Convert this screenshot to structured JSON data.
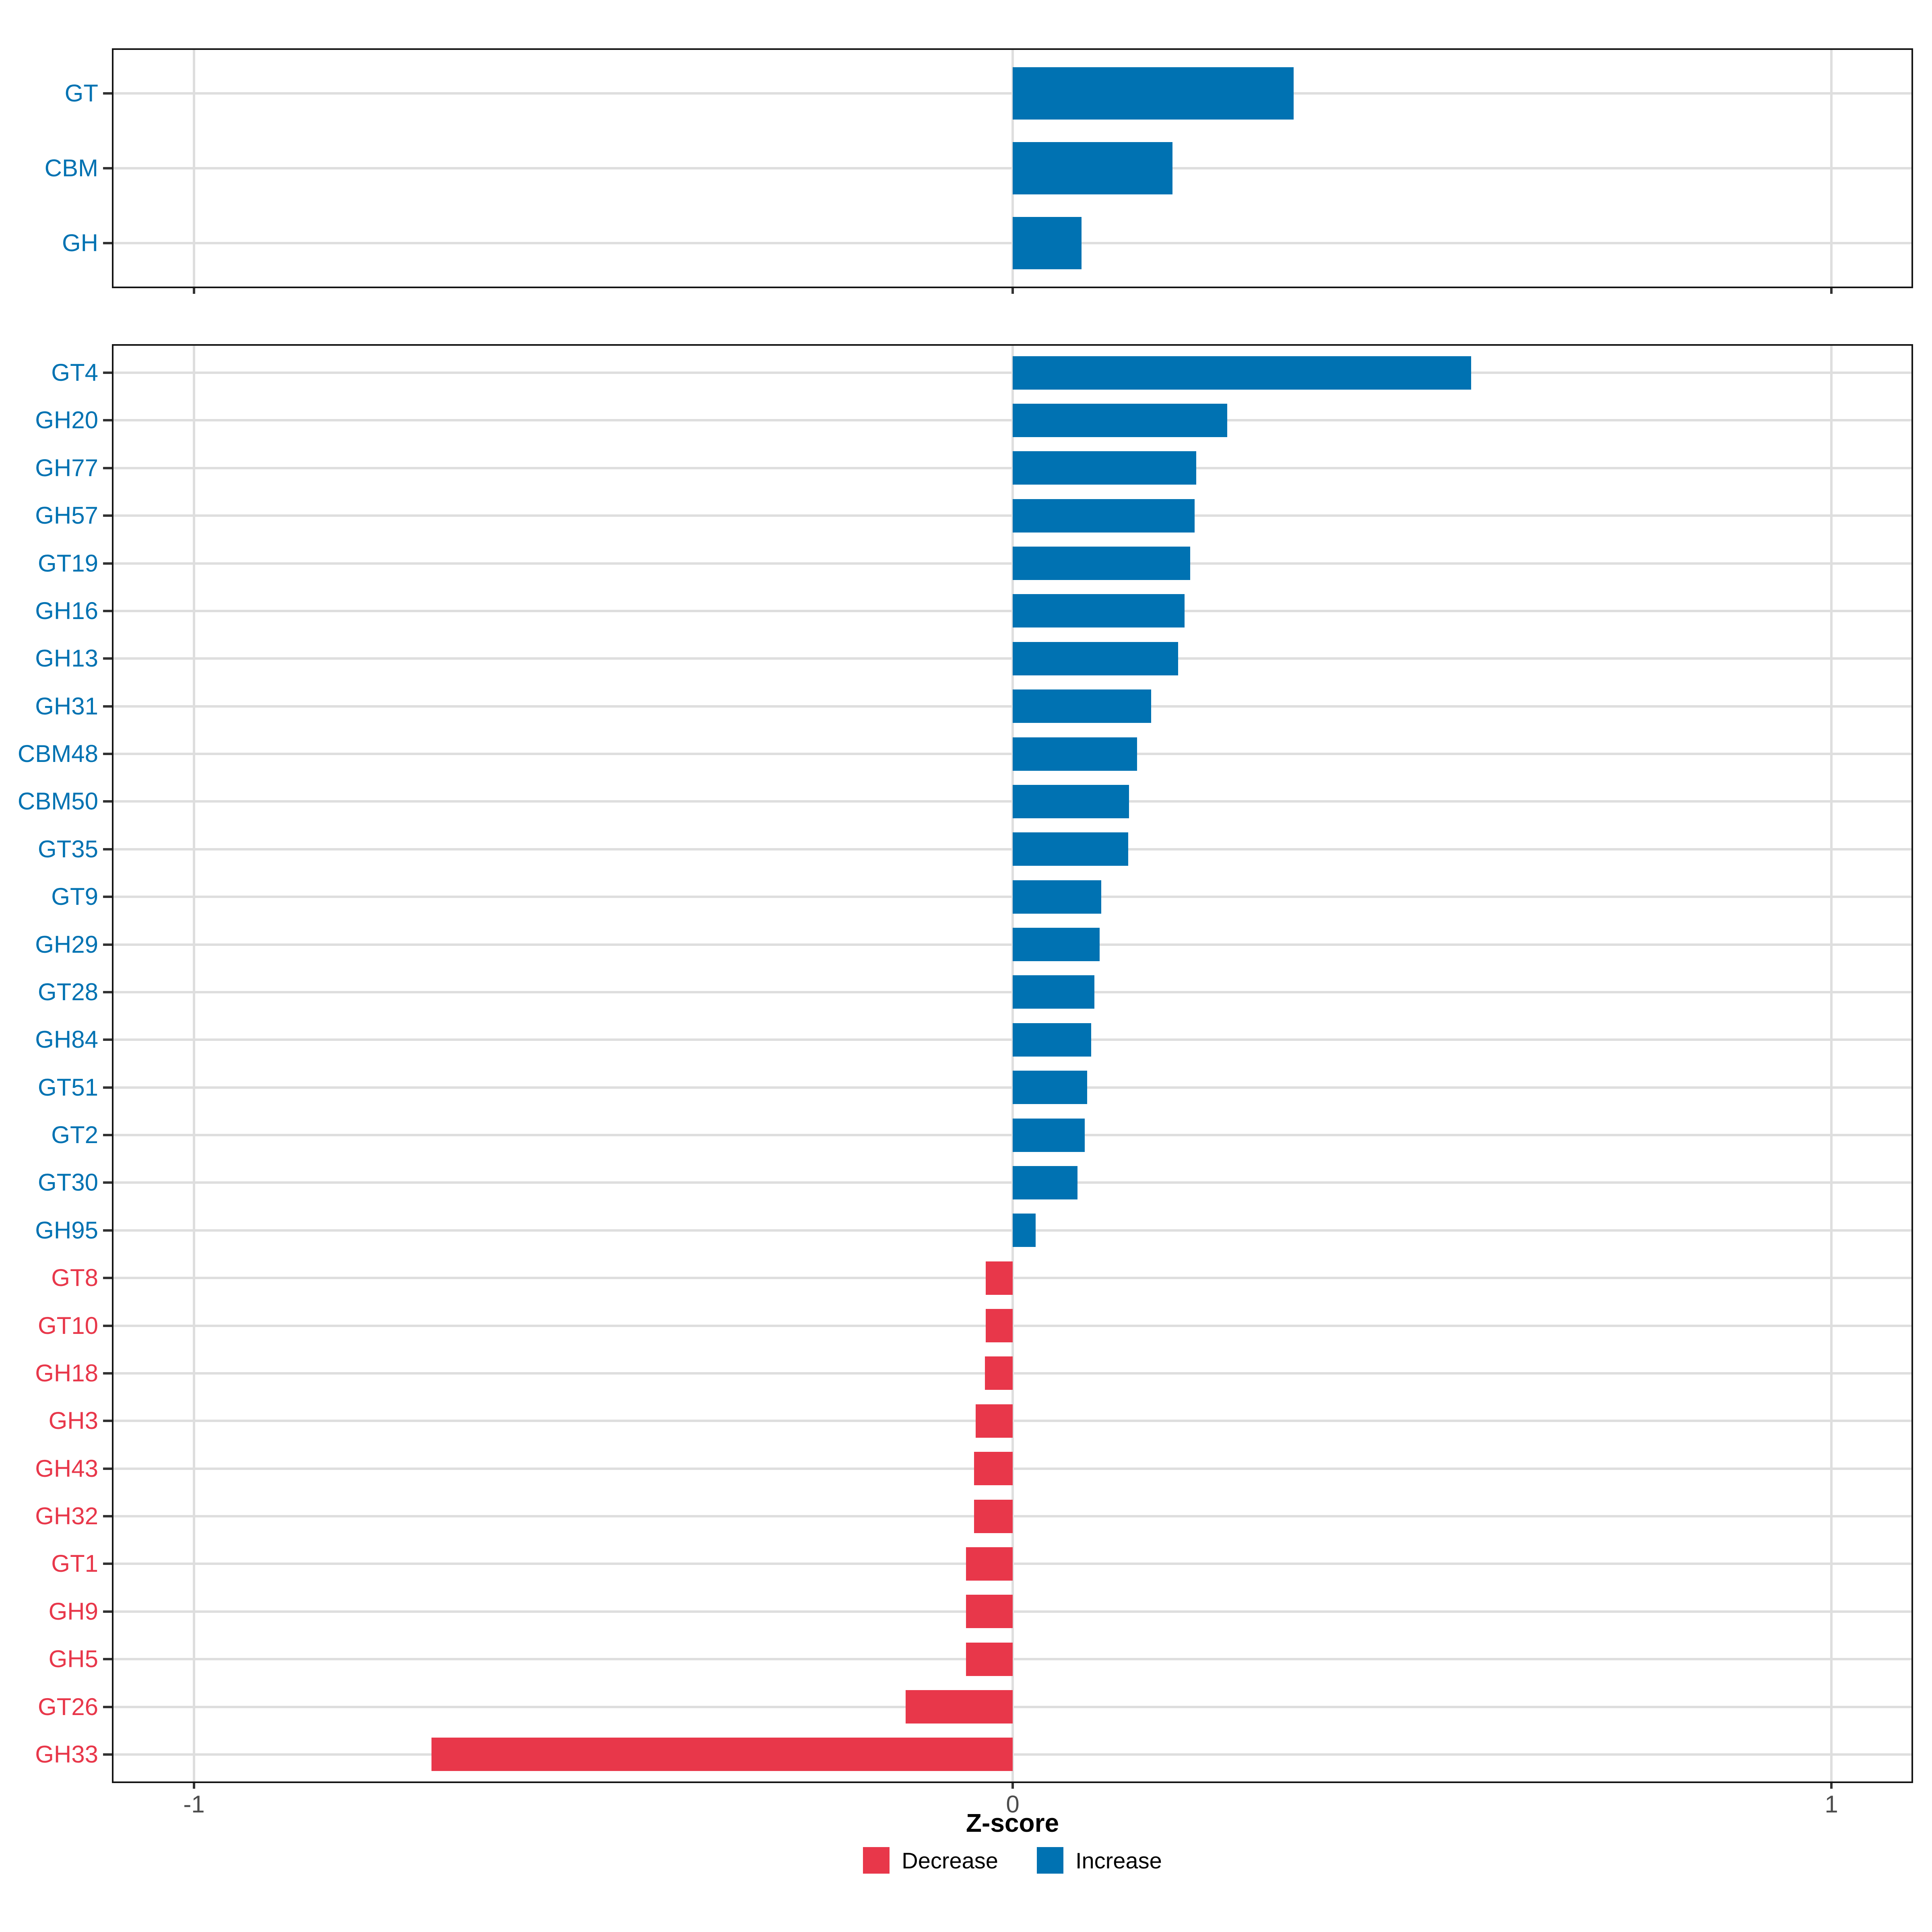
{
  "axis": {
    "title": "Z-score",
    "tick_values": [
      -1,
      0,
      1
    ],
    "tick_labels": [
      "-1",
      "0",
      "1"
    ],
    "xlim": [
      -1.1,
      1.1
    ]
  },
  "legend": {
    "items": [
      {
        "label": "Decrease",
        "group": "Decrease",
        "color": "#E8374A"
      },
      {
        "label": "Increase",
        "group": "Increase",
        "color": "#0072B2"
      }
    ],
    "position": "bottom"
  },
  "colors": {
    "increase": "#0072B2",
    "decrease": "#E8374A",
    "grid": "#DEDEDE",
    "panel_border": "#141414",
    "tick": "#333333",
    "tick_label": "#4D4D4D",
    "axis_title": "#000000",
    "background": "#FFFFFF"
  },
  "chart_data": [
    {
      "type": "bar",
      "orientation": "horizontal",
      "panel": "top",
      "title": "",
      "xlabel": "Z-score",
      "xlim": [
        -1.1,
        1.1
      ],
      "x_ticks": [
        -1,
        0,
        1
      ],
      "grid": true,
      "legend_position": "bottom",
      "categories": [
        "GT",
        "CBM",
        "GH"
      ],
      "values": [
        0.343,
        0.195,
        0.084
      ],
      "groups": [
        "Increase",
        "Increase",
        "Increase"
      ]
    },
    {
      "type": "bar",
      "orientation": "horizontal",
      "panel": "bottom",
      "title": "",
      "xlabel": "Z-score",
      "xlim": [
        -1.1,
        1.1
      ],
      "x_ticks": [
        -1,
        0,
        1
      ],
      "grid": true,
      "legend_position": "bottom",
      "categories": [
        "GT4",
        "GH20",
        "GH77",
        "GH57",
        "GT19",
        "GH16",
        "GH13",
        "GH31",
        "CBM48",
        "CBM50",
        "GT35",
        "GT9",
        "GH29",
        "GT28",
        "GH84",
        "GT51",
        "GT2",
        "GT30",
        "GH95",
        "GT8",
        "GT10",
        "GH18",
        "GH3",
        "GH43",
        "GH32",
        "GT1",
        "GH9",
        "GH5",
        "GT26",
        "GH33"
      ],
      "values": [
        0.56,
        0.262,
        0.224,
        0.222,
        0.217,
        0.21,
        0.202,
        0.169,
        0.152,
        0.142,
        0.141,
        0.108,
        0.106,
        0.1,
        0.096,
        0.091,
        0.088,
        0.079,
        0.028,
        -0.033,
        -0.033,
        -0.034,
        -0.045,
        -0.047,
        -0.047,
        -0.057,
        -0.057,
        -0.057,
        -0.131,
        -0.71
      ],
      "groups": [
        "Increase",
        "Increase",
        "Increase",
        "Increase",
        "Increase",
        "Increase",
        "Increase",
        "Increase",
        "Increase",
        "Increase",
        "Increase",
        "Increase",
        "Increase",
        "Increase",
        "Increase",
        "Increase",
        "Increase",
        "Increase",
        "Increase",
        "Decrease",
        "Decrease",
        "Decrease",
        "Decrease",
        "Decrease",
        "Decrease",
        "Decrease",
        "Decrease",
        "Decrease",
        "Decrease",
        "Decrease"
      ]
    }
  ]
}
